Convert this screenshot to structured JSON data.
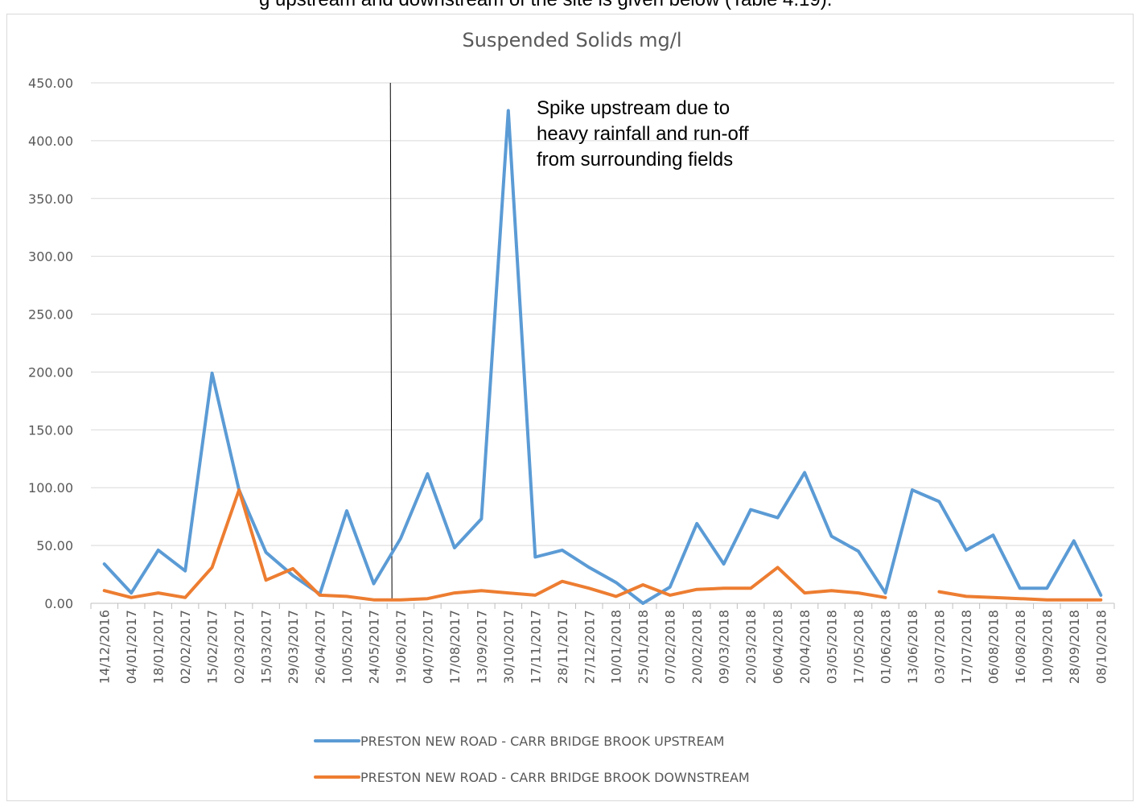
{
  "header_fragment": "g upstream and downstream of the site is given below (Table 4.19).",
  "chart_data": {
    "type": "line",
    "title": "Suspended Solids mg/l",
    "xlabel": "",
    "ylabel": "",
    "ylim": [
      0,
      450
    ],
    "yticks": [
      "0.00",
      "50.00",
      "100.00",
      "150.00",
      "200.00",
      "250.00",
      "300.00",
      "350.00",
      "400.00",
      "450.00"
    ],
    "grid": true,
    "legend_position": "bottom",
    "categories": [
      "14/12/2016",
      "04/01/2017",
      "18/01/2017",
      "02/02/2017",
      "15/02/2017",
      "02/03/2017",
      "15/03/2017",
      "29/03/2017",
      "26/04/2017",
      "10/05/2017",
      "24/05/2017",
      "19/06/2017",
      "04/07/2017",
      "17/08/2017",
      "13/09/2017",
      "30/10/2017",
      "17/11/2017",
      "28/11/2017",
      "27/12/2017",
      "10/01/2018",
      "25/01/2018",
      "07/02/2018",
      "20/02/2018",
      "09/03/2018",
      "20/03/2018",
      "06/04/2018",
      "20/04/2018",
      "03/05/2018",
      "17/05/2018",
      "01/06/2018",
      "13/06/2018",
      "03/07/2018",
      "17/07/2018",
      "06/08/2018",
      "16/08/2018",
      "10/09/2018",
      "28/09/2018",
      "08/10/2018"
    ],
    "series": [
      {
        "name": "PRESTON NEW ROAD - CARR BRIDGE BROOK UPSTREAM",
        "color": "#5b9bd5",
        "values": [
          34,
          9,
          46,
          28,
          199,
          98,
          44,
          24,
          8,
          80,
          17,
          56,
          112,
          48,
          73,
          426,
          40,
          46,
          31,
          18,
          0,
          14,
          69,
          34,
          81,
          74,
          113,
          58,
          45,
          9,
          98,
          88,
          46,
          59,
          13,
          13,
          54,
          7
        ]
      },
      {
        "name": "PRESTON NEW ROAD - CARR BRIDGE BROOK DOWNSTREAM",
        "color": "#ed7d31",
        "values": [
          11,
          5,
          9,
          5,
          31,
          98,
          20,
          30,
          7,
          6,
          3,
          3,
          4,
          9,
          11,
          9,
          7,
          19,
          13,
          6,
          16,
          7,
          12,
          13,
          13,
          31,
          9,
          11,
          9,
          5,
          null,
          10,
          6,
          5,
          4,
          3,
          3,
          3
        ]
      }
    ],
    "annotation": {
      "lines": [
        "Spike upstream due to",
        "heavy rainfall and run-off",
        "from surrounding fields"
      ]
    },
    "marker_line_after_category": "24/05/2017"
  }
}
